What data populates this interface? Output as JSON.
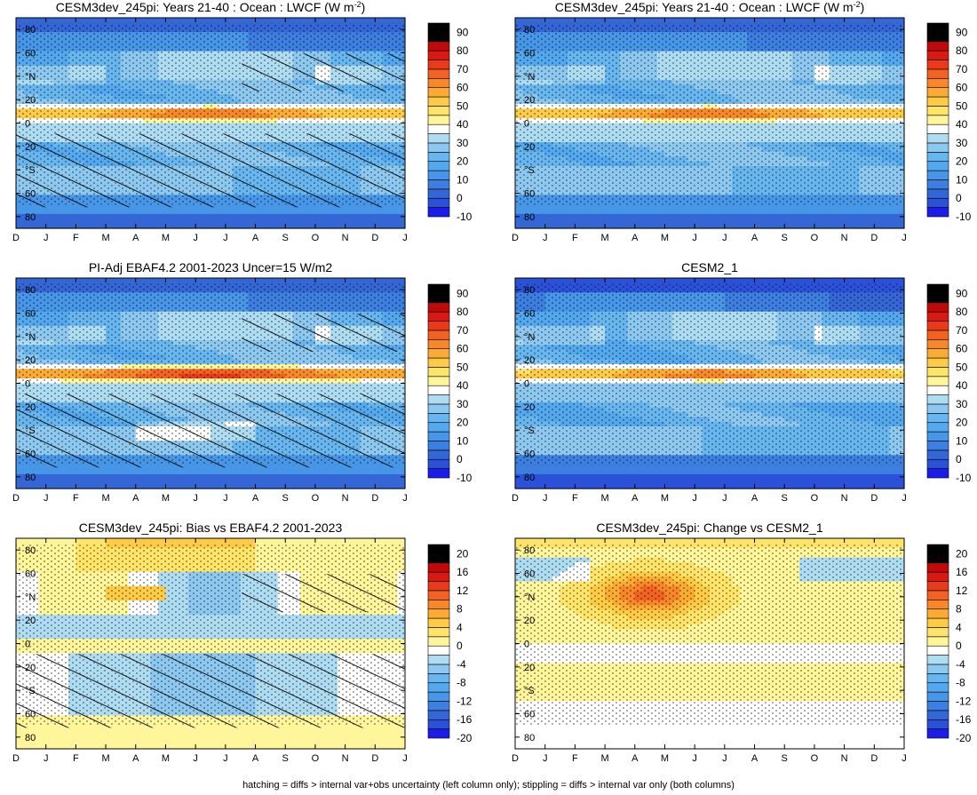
{
  "footer": "hatching = diffs > internal var+obs uncertainty (left column only); stippling = diffs > internal var only (both columns)",
  "colors": {
    "neg": [
      "#1b1ce8",
      "#2a51d8",
      "#3466d6",
      "#3c7fe0",
      "#4796e8",
      "#53a8ee",
      "#68b6ef",
      "#8cc8f0",
      "#aedcf2"
    ],
    "zero": "#ffffff",
    "pos": [
      "#fff59a",
      "#fee56a",
      "#fdcb45",
      "#fbaa33",
      "#f8872a",
      "#f26222",
      "#e93a19",
      "#d81a12",
      "#c00a0a"
    ]
  },
  "x_months": [
    "D",
    "J",
    "F",
    "M",
    "A",
    "M",
    "J",
    "J",
    "A",
    "S",
    "O",
    "N",
    "D",
    "J"
  ],
  "y_ticks": [
    "80",
    "60",
    "°N",
    "20",
    "0",
    "20",
    "°S",
    "60",
    "80"
  ],
  "chart_data": [
    {
      "type": "heatmap",
      "title": "CESM3dev_245pi: Years 21-40 : Ocean : LWCF (W m",
      "title_sup": "-2",
      "title_tail": ")",
      "colorbar_ticks": [
        "90",
        "80",
        "70",
        "60",
        "50",
        "40",
        "30",
        "20",
        "10",
        "0",
        "-10"
      ],
      "colorbar_levels": [
        -10,
        -5,
        0,
        5,
        10,
        15,
        20,
        25,
        30,
        35,
        40,
        45,
        50,
        55,
        60,
        65,
        70,
        75,
        80,
        85,
        90,
        95
      ],
      "zero_level": 40,
      "hatching": true,
      "stippling": true
    },
    {
      "type": "heatmap",
      "title": "CESM3dev_245pi: Years 21-40 : Ocean : LWCF (W m",
      "title_sup": "-2",
      "title_tail": ")",
      "colorbar_ticks": [
        "90",
        "80",
        "70",
        "60",
        "50",
        "40",
        "30",
        "20",
        "10",
        "0",
        "-10"
      ],
      "colorbar_levels": [
        -10,
        -5,
        0,
        5,
        10,
        15,
        20,
        25,
        30,
        35,
        40,
        45,
        50,
        55,
        60,
        65,
        70,
        75,
        80,
        85,
        90,
        95
      ],
      "zero_level": 40,
      "hatching": false,
      "stippling": true
    },
    {
      "type": "heatmap",
      "title": "PI-Adj EBAF4.2 2001-2023 Uncer=15 W/m2",
      "colorbar_ticks": [
        "90",
        "80",
        "70",
        "60",
        "50",
        "40",
        "30",
        "20",
        "10",
        "0",
        "-10"
      ],
      "colorbar_levels": [
        -10,
        -5,
        0,
        5,
        10,
        15,
        20,
        25,
        30,
        35,
        40,
        45,
        50,
        55,
        60,
        65,
        70,
        75,
        80,
        85,
        90,
        95
      ],
      "zero_level": 40,
      "hatching": true,
      "stippling": true
    },
    {
      "type": "heatmap",
      "title": "CESM2_1",
      "colorbar_ticks": [
        "90",
        "80",
        "70",
        "60",
        "50",
        "40",
        "30",
        "20",
        "10",
        "0",
        "-10"
      ],
      "colorbar_levels": [
        -10,
        -5,
        0,
        5,
        10,
        15,
        20,
        25,
        30,
        35,
        40,
        45,
        50,
        55,
        60,
        65,
        70,
        75,
        80,
        85,
        90,
        95
      ],
      "zero_level": 40,
      "hatching": false,
      "stippling": true
    },
    {
      "type": "heatmap",
      "title": "CESM3dev_245pi: Bias vs EBAF4.2 2001-2023",
      "colorbar_ticks": [
        "20",
        "16",
        "12",
        "8",
        "4",
        "0",
        "-4",
        "-8",
        "-12",
        "-16",
        "-20"
      ],
      "colorbar_levels": [
        -20,
        -18,
        -16,
        -14,
        -12,
        -10,
        -8,
        -6,
        -4,
        -2,
        0,
        2,
        4,
        6,
        8,
        10,
        12,
        14,
        16,
        18,
        20,
        22
      ],
      "zero_level": 0,
      "hatching": true,
      "stippling": true
    },
    {
      "type": "heatmap",
      "title": "CESM3dev_245pi: Change vs CESM2_1",
      "colorbar_ticks": [
        "20",
        "16",
        "12",
        "8",
        "4",
        "0",
        "-4",
        "-8",
        "-12",
        "-16",
        "-20"
      ],
      "colorbar_levels": [
        -20,
        -18,
        -16,
        -14,
        -12,
        -10,
        -8,
        -6,
        -4,
        -2,
        0,
        2,
        4,
        6,
        8,
        10,
        12,
        14,
        16,
        18,
        20,
        22
      ],
      "zero_level": 0,
      "hatching": false,
      "stippling": true
    }
  ]
}
